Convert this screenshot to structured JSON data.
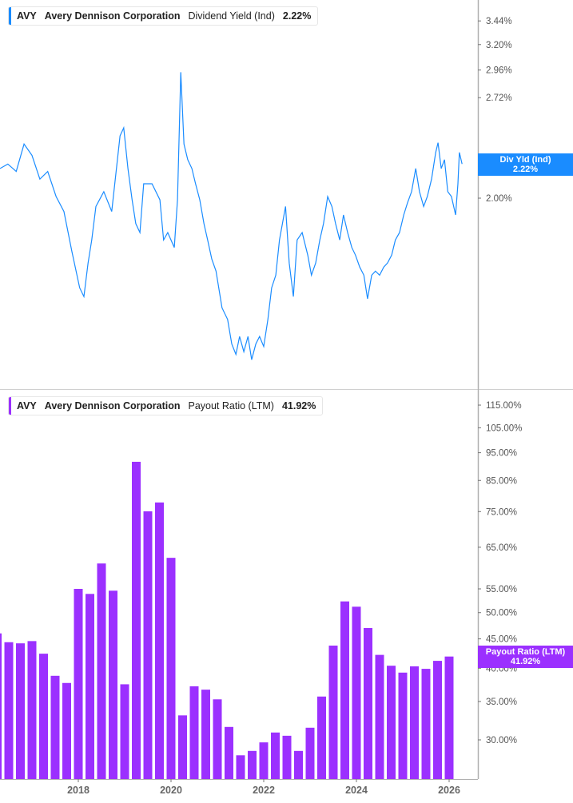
{
  "top_legend": {
    "ticker": "AVY",
    "company": "Avery Dennison Corporation",
    "metric": "Dividend Yield (Ind)",
    "value": "2.22%"
  },
  "bottom_legend": {
    "ticker": "AVY",
    "company": "Avery Dennison Corporation",
    "metric": "Payout Ratio (LTM)",
    "value": "41.92%"
  },
  "top_tag": {
    "label": "Div Yld (Ind)",
    "value": "2.22%"
  },
  "bottom_tag": {
    "label": "Payout Ratio (LTM)",
    "value": "41.92%"
  },
  "colors": {
    "yield": "#1a8cff",
    "payout": "#9b30ff",
    "axis": "#b0b0b0",
    "text": "#555555"
  },
  "chart_data": [
    {
      "type": "line",
      "series": [
        {
          "name": "Dividend Yield (Ind)",
          "x": [
            2016.31,
            2016.48,
            2016.66,
            2016.83,
            2017.0,
            2017.17,
            2017.34,
            2017.52,
            2017.69,
            2017.86,
            2018.03,
            2018.12,
            2018.21,
            2018.29,
            2018.38,
            2018.55,
            2018.72,
            2018.9,
            2018.98,
            2019.07,
            2019.16,
            2019.24,
            2019.33,
            2019.41,
            2019.59,
            2019.76,
            2019.84,
            2019.93,
            2020.07,
            2020.14,
            2020.21,
            2020.28,
            2020.36,
            2020.45,
            2020.53,
            2020.62,
            2020.71,
            2020.79,
            2020.88,
            2020.97,
            2021.1,
            2021.22,
            2021.31,
            2021.4,
            2021.48,
            2021.57,
            2021.66,
            2021.74,
            2021.83,
            2021.91,
            2022.0,
            2022.09,
            2022.17,
            2022.26,
            2022.34,
            2022.47,
            2022.55,
            2022.64,
            2022.72,
            2022.83,
            2022.95,
            2023.03,
            2023.12,
            2023.21,
            2023.29,
            2023.38,
            2023.47,
            2023.55,
            2023.64,
            2023.72,
            2023.81,
            2023.9,
            2023.98,
            2024.07,
            2024.16,
            2024.24,
            2024.33,
            2024.41,
            2024.5,
            2024.59,
            2024.67,
            2024.76,
            2024.84,
            2024.93,
            2025.02,
            2025.1,
            2025.19,
            2025.28,
            2025.36,
            2025.45,
            2025.53,
            2025.62,
            2025.71,
            2025.76,
            2025.83,
            2025.9,
            2025.97,
            2026.05,
            2026.14,
            2026.19,
            2026.22,
            2026.28
          ],
          "y": [
            2.19,
            2.22,
            2.17,
            2.36,
            2.28,
            2.12,
            2.17,
            2.01,
            1.92,
            1.7,
            1.52,
            1.48,
            1.64,
            1.76,
            1.95,
            2.04,
            1.92,
            2.42,
            2.48,
            2.19,
            1.99,
            1.85,
            1.8,
            2.09,
            2.09,
            1.99,
            1.76,
            1.8,
            1.72,
            1.99,
            2.94,
            2.36,
            2.25,
            2.19,
            2.09,
            1.99,
            1.85,
            1.76,
            1.66,
            1.6,
            1.43,
            1.38,
            1.28,
            1.24,
            1.31,
            1.25,
            1.31,
            1.22,
            1.28,
            1.31,
            1.27,
            1.38,
            1.52,
            1.58,
            1.76,
            1.95,
            1.64,
            1.48,
            1.76,
            1.8,
            1.68,
            1.58,
            1.64,
            1.76,
            1.85,
            2.01,
            1.95,
            1.85,
            1.76,
            1.9,
            1.8,
            1.72,
            1.68,
            1.62,
            1.58,
            1.47,
            1.58,
            1.6,
            1.58,
            1.62,
            1.64,
            1.68,
            1.76,
            1.8,
            1.9,
            1.97,
            2.04,
            2.19,
            2.04,
            1.95,
            2.01,
            2.12,
            2.3,
            2.37,
            2.19,
            2.25,
            2.04,
            2.01,
            1.9,
            2.09,
            2.3,
            2.22
          ]
        }
      ],
      "y_scale": "log",
      "y_ticks": [
        "3.44%",
        "3.20%",
        "2.96%",
        "2.72%",
        "2.00%"
      ],
      "y_tick_values": [
        3.44,
        3.2,
        2.96,
        2.72,
        2.0
      ],
      "ylim": [
        1.15,
        3.6
      ],
      "grid": false
    },
    {
      "type": "bar",
      "series": [
        {
          "name": "Payout Ratio (LTM)",
          "x": [
            2016.25,
            2016.5,
            2016.75,
            2017.0,
            2017.25,
            2017.5,
            2017.75,
            2018.0,
            2018.25,
            2018.5,
            2018.75,
            2019.0,
            2019.25,
            2019.5,
            2019.75,
            2020.0,
            2020.25,
            2020.5,
            2020.75,
            2021.0,
            2021.25,
            2021.5,
            2021.75,
            2022.0,
            2022.25,
            2022.5,
            2022.75,
            2023.0,
            2023.25,
            2023.5,
            2023.75,
            2024.0,
            2024.25,
            2024.5,
            2024.75,
            2025.0,
            2025.25,
            2025.5,
            2025.75,
            2026.0
          ],
          "values": [
            46.0,
            44.4,
            44.2,
            44.6,
            42.4,
            38.8,
            37.7,
            55.0,
            53.9,
            60.9,
            54.6,
            37.5,
            91.6,
            75.1,
            77.8,
            62.3,
            33.1,
            37.2,
            36.7,
            35.3,
            31.6,
            28.2,
            28.7,
            29.7,
            30.9,
            30.5,
            28.7,
            31.5,
            35.7,
            43.8,
            52.3,
            51.2,
            47.0,
            42.2,
            40.4,
            39.3,
            40.3,
            39.9,
            41.2,
            41.92
          ]
        }
      ],
      "y_scale": "log",
      "y_ticks": [
        "115.00%",
        "105.00%",
        "95.00%",
        "85.00%",
        "75.00%",
        "65.00%",
        "55.00%",
        "50.00%",
        "45.00%",
        "40.00%",
        "35.00%",
        "30.00%"
      ],
      "y_tick_values": [
        115,
        105,
        95,
        85,
        75,
        65,
        55,
        50,
        45,
        40,
        35,
        30
      ],
      "x_ticks": [
        "2018",
        "2020",
        "2022",
        "2024",
        "2026"
      ],
      "x_tick_values": [
        2018,
        2020,
        2022,
        2024,
        2026
      ],
      "grid": false
    }
  ]
}
